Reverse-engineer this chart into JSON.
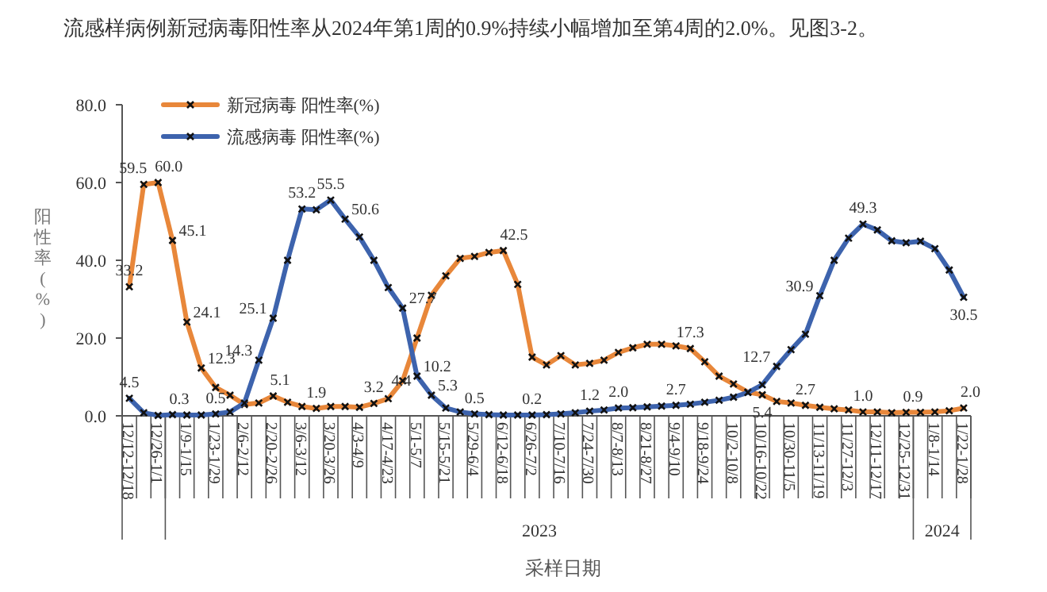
{
  "chart_data": {
    "type": "line",
    "title": "流感样病例新冠病毒阳性率从2024年第1周的0.9%持续小幅增加至第4周的2.0%。见图3-2。",
    "xlabel": "采样日期",
    "ylabel": "阳性率(%)",
    "annotations": [
      "2023",
      "2024"
    ],
    "categories": [
      "12/12-12/18",
      null,
      "12/26-1/1",
      null,
      "1/9-1/15",
      null,
      "1/23-1/29",
      null,
      "2/6-2/12",
      null,
      "2/20-2/26",
      null,
      "3/6-3/12",
      null,
      "3/20-3/26",
      null,
      "4/3-4/9",
      null,
      "4/17-4/23",
      null,
      "5/1-5/7",
      null,
      "5/15-5/21",
      null,
      "5/29-6/4",
      null,
      "6/12-6/18",
      null,
      "6/26-7/2",
      null,
      "7/10-7/16",
      null,
      "7/24-7/30",
      null,
      "8/7-8/13",
      null,
      "8/21-8/27",
      null,
      "9/4-9/10",
      null,
      "9/18-9/24",
      null,
      "10/2-10/8",
      null,
      "10/16-10/22",
      null,
      "10/30-11/5",
      null,
      "11/13-11/19",
      null,
      "11/27-12/3",
      null,
      "12/11-12/17",
      null,
      "12/25-12/31",
      null,
      "1/8-1/14",
      null,
      "1/22-1/28"
    ],
    "ylim": [
      0,
      80
    ],
    "yticks": [
      {
        "value": 0,
        "label": "0.0"
      },
      {
        "value": 20,
        "label": "20.0"
      },
      {
        "value": 40,
        "label": "40.0"
      },
      {
        "value": 60,
        "label": "60.0"
      },
      {
        "value": 80,
        "label": "80.0"
      }
    ],
    "legend": "top left",
    "marker": "cross",
    "line_style": "solid",
    "grid": false,
    "series": [
      {
        "name": "新冠病毒  阳性率(%)",
        "color": "#e8873a",
        "values": [
          33.2,
          59.5,
          60.0,
          45.1,
          24.1,
          12.3,
          7.3,
          5.3,
          2.9,
          3.3,
          5.1,
          3.5,
          2.4,
          1.9,
          2.4,
          2.4,
          2.2,
          3.2,
          4.4,
          9.0,
          20.0,
          31.0,
          36.0,
          40.5,
          41.0,
          42.0,
          42.5,
          33.8,
          15.1,
          13.1,
          15.5,
          13.1,
          13.5,
          14.3,
          16.3,
          17.5,
          18.4,
          18.4,
          18.0,
          17.3,
          13.9,
          10.2,
          8.2,
          6.1,
          5.4,
          3.7,
          3.3,
          2.7,
          2.2,
          1.8,
          1.5,
          1.0,
          1.0,
          0.8,
          0.9,
          0.9,
          1.0,
          1.3,
          2.0
        ],
        "value_labels": [
          "33.2",
          "59.5",
          "60.0",
          "45.1",
          "24.1",
          "12.3",
          null,
          null,
          null,
          null,
          "5.1",
          null,
          null,
          "1.9",
          null,
          null,
          null,
          "3.2",
          "4.4",
          null,
          null,
          null,
          null,
          null,
          null,
          null,
          "42.5",
          null,
          null,
          null,
          null,
          null,
          null,
          null,
          null,
          null,
          null,
          null,
          null,
          "17.3",
          null,
          null,
          null,
          null,
          "5.4",
          null,
          null,
          "2.7",
          null,
          null,
          null,
          "1.0",
          null,
          null,
          "0.9",
          null,
          null,
          null,
          "2.0"
        ]
      },
      {
        "name": "流感病毒  阳性率(%)",
        "color": "#3d63ad",
        "values": [
          4.5,
          0.8,
          0.1,
          0.3,
          0.2,
          0.2,
          0.5,
          1.0,
          3.3,
          14.3,
          25.1,
          40.0,
          53.2,
          53.0,
          55.5,
          50.6,
          46.0,
          40.0,
          33.0,
          27.7,
          10.2,
          5.3,
          2.0,
          1.0,
          0.5,
          0.3,
          0.2,
          0.2,
          0.2,
          0.3,
          0.5,
          0.8,
          1.2,
          1.5,
          2.0,
          2.1,
          2.3,
          2.5,
          2.7,
          3.0,
          3.5,
          4.0,
          4.8,
          6.0,
          8.0,
          12.7,
          17.0,
          21.0,
          30.9,
          40.0,
          45.7,
          49.3,
          47.8,
          45.0,
          44.5,
          44.9,
          43.0,
          37.5,
          30.5
        ],
        "value_labels": [
          "4.5",
          null,
          null,
          "0.3",
          null,
          null,
          "0.5",
          null,
          null,
          "14.3",
          "25.1",
          null,
          "53.2",
          null,
          "55.5",
          "50.6",
          null,
          null,
          null,
          "27.7",
          "10.2",
          "5.3",
          null,
          null,
          "0.5",
          null,
          null,
          null,
          "0.2",
          null,
          null,
          null,
          "1.2",
          null,
          "2.0",
          null,
          null,
          null,
          "2.7",
          null,
          null,
          null,
          null,
          null,
          null,
          "12.7",
          null,
          null,
          "30.9",
          null,
          null,
          "49.3",
          null,
          null,
          null,
          null,
          null,
          null,
          "30.5"
        ]
      }
    ]
  }
}
